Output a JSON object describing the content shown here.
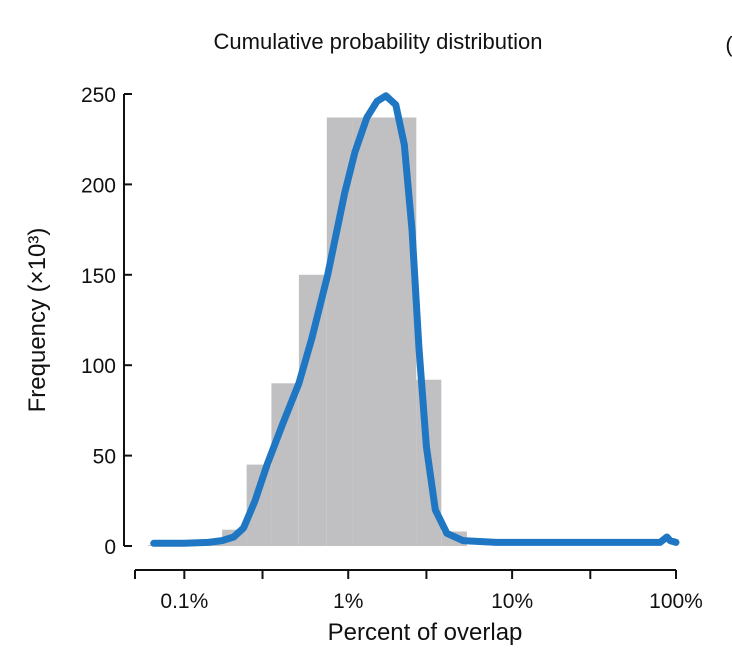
{
  "chart_data": {
    "type": "bar",
    "title": "Cumulative probability distribution",
    "xlabel": "Percent of overlap",
    "ylabel": "Frequency (×10³)",
    "x_scale": "log",
    "x_ticks": [
      "0.1%",
      "1%",
      "10%",
      "100%"
    ],
    "y_ticks": [
      "0",
      "50",
      "100",
      "150",
      "200",
      "250"
    ],
    "ylim": [
      0,
      250
    ],
    "xlim_percent": [
      0.05,
      100
    ],
    "bar_color": "#c0c0c2",
    "line_color": "#1f77c4",
    "bins": [
      {
        "x0": 0.06,
        "x1": 0.12,
        "value": 0.5
      },
      {
        "x0": 0.12,
        "x1": 0.17,
        "value": 1
      },
      {
        "x0": 0.17,
        "x1": 0.24,
        "value": 9
      },
      {
        "x0": 0.24,
        "x1": 0.34,
        "value": 45
      },
      {
        "x0": 0.34,
        "x1": 0.5,
        "value": 90
      },
      {
        "x0": 0.5,
        "x1": 0.74,
        "value": 150
      },
      {
        "x0": 0.74,
        "x1": 1.06,
        "value": 237
      },
      {
        "x0": 1.06,
        "x1": 1.06,
        "value": 237
      },
      {
        "x0": 1.06,
        "x1": 2.6,
        "value": 237
      },
      {
        "x0": 2.6,
        "x1": 3.7,
        "value": 92
      },
      {
        "x0": 3.7,
        "x1": 5.3,
        "value": 8
      }
    ],
    "series": [
      {
        "type": "line",
        "points": [
          [
            0.065,
            1.5
          ],
          [
            0.1,
            1.5
          ],
          [
            0.14,
            2
          ],
          [
            0.17,
            3
          ],
          [
            0.2,
            5
          ],
          [
            0.23,
            10
          ],
          [
            0.27,
            25
          ],
          [
            0.32,
            45
          ],
          [
            0.4,
            68
          ],
          [
            0.5,
            90
          ],
          [
            0.6,
            115
          ],
          [
            0.75,
            150
          ],
          [
            0.95,
            195
          ],
          [
            1.1,
            218
          ],
          [
            1.3,
            237
          ],
          [
            1.5,
            246
          ],
          [
            1.7,
            249
          ],
          [
            1.95,
            244
          ],
          [
            2.2,
            222
          ],
          [
            2.45,
            175
          ],
          [
            2.7,
            110
          ],
          [
            3.0,
            55
          ],
          [
            3.4,
            20
          ],
          [
            4.0,
            7
          ],
          [
            5,
            3
          ],
          [
            8,
            2
          ],
          [
            20,
            2
          ],
          [
            50,
            2
          ],
          [
            80,
            2
          ],
          [
            88,
            5
          ],
          [
            92,
            3
          ],
          [
            100,
            2
          ]
        ]
      }
    ],
    "right_edge_mark": "("
  }
}
